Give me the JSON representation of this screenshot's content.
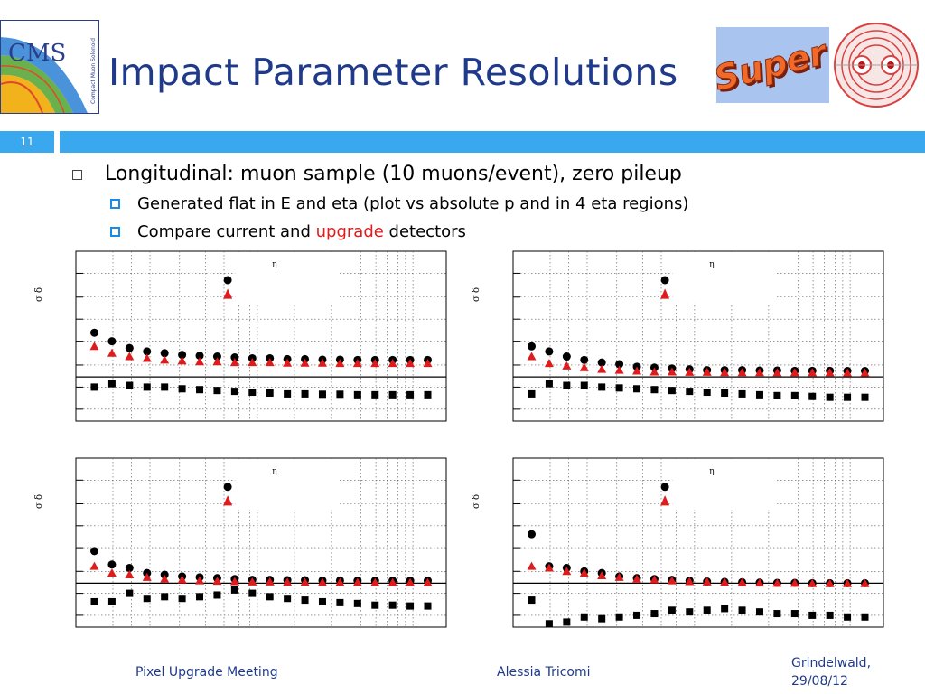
{
  "slide": {
    "number": "11",
    "title": "Impact Parameter Resolutions",
    "logos": {
      "cms_label": "CMS",
      "cms_subtitle": "Compact Muon Solenoid",
      "super_label": "Super"
    },
    "bullets": [
      {
        "level": 1,
        "text": "Longitudinal: muon sample (10 muons/event), zero pileup",
        "children": [
          {
            "level": 2,
            "text": "Generated flat in E and eta (plot vs absolute p and in 4 eta regions)"
          },
          {
            "level": 2,
            "text_before": "Compare current and ",
            "text_highlight": "upgrade",
            "text_after": " detectors"
          }
        ]
      }
    ],
    "footer": {
      "left": "Pixel Upgrade Meeting",
      "center": "Alessia Tricomi",
      "right_line1": "Grindelwald,",
      "right_line2": "29/08/12"
    },
    "colors": {
      "title": "#1f3a8a",
      "bar": "#3aa8ee",
      "current": "#000000",
      "upgrade": "#e01b1b"
    }
  },
  "chart_data": [
    {
      "type": "scatter",
      "panel": "top-left",
      "ylabel": "σ δ",
      "legend_label": "η",
      "legend_position": "top-center",
      "grid": true,
      "ylim": [
        0,
        1
      ],
      "x": [
        1,
        2,
        3,
        4,
        5,
        6,
        7,
        8,
        9,
        10,
        11,
        12,
        13,
        14,
        15,
        16,
        17,
        18,
        19,
        20
      ],
      "series": [
        {
          "marker": "circle",
          "color": "#000000",
          "values": [
            0.52,
            0.47,
            0.43,
            0.41,
            0.4,
            0.39,
            0.385,
            0.38,
            0.375,
            0.37,
            0.37,
            0.365,
            0.365,
            0.362,
            0.362,
            0.36,
            0.36,
            0.36,
            0.36,
            0.36
          ]
        },
        {
          "marker": "triangle",
          "color": "#e01b1b",
          "values": [
            0.44,
            0.4,
            0.38,
            0.37,
            0.36,
            0.355,
            0.35,
            0.35,
            0.345,
            0.345,
            0.345,
            0.342,
            0.342,
            0.342,
            0.34,
            0.34,
            0.34,
            0.34,
            0.34,
            0.34
          ]
        },
        {
          "marker": "square",
          "color": "#000000",
          "values": [
            0.2,
            0.22,
            0.21,
            0.2,
            0.2,
            0.19,
            0.185,
            0.18,
            0.175,
            0.17,
            0.165,
            0.16,
            0.16,
            0.158,
            0.158,
            0.155,
            0.155,
            0.155,
            0.155,
            0.155
          ]
        }
      ]
    },
    {
      "type": "scatter",
      "panel": "top-right",
      "ylabel": "σ δ",
      "legend_label": "η",
      "legend_position": "top-center",
      "grid": true,
      "ylim": [
        0,
        1
      ],
      "x": [
        1,
        2,
        3,
        4,
        5,
        6,
        7,
        8,
        9,
        10,
        11,
        12,
        13,
        14,
        15,
        16,
        17,
        18,
        19,
        20
      ],
      "series": [
        {
          "marker": "circle",
          "color": "#000000",
          "values": [
            0.44,
            0.41,
            0.38,
            0.36,
            0.345,
            0.335,
            0.32,
            0.315,
            0.31,
            0.305,
            0.3,
            0.3,
            0.3,
            0.298,
            0.298,
            0.296,
            0.296,
            0.296,
            0.295,
            0.295
          ]
        },
        {
          "marker": "triangle",
          "color": "#e01b1b",
          "values": [
            0.38,
            0.34,
            0.325,
            0.315,
            0.305,
            0.3,
            0.295,
            0.29,
            0.29,
            0.288,
            0.288,
            0.286,
            0.286,
            0.286,
            0.285,
            0.285,
            0.285,
            0.285,
            0.284,
            0.284
          ]
        },
        {
          "marker": "square",
          "color": "#000000",
          "values": [
            0.16,
            0.22,
            0.21,
            0.21,
            0.2,
            0.195,
            0.19,
            0.185,
            0.18,
            0.175,
            0.17,
            0.165,
            0.16,
            0.155,
            0.15,
            0.15,
            0.145,
            0.14,
            0.14,
            0.14
          ]
        }
      ]
    },
    {
      "type": "scatter",
      "panel": "bottom-left",
      "ylabel": "σ δ",
      "legend_label": "η",
      "legend_position": "top-center",
      "grid": true,
      "ylim": [
        0,
        1
      ],
      "x": [
        1,
        2,
        3,
        4,
        5,
        6,
        7,
        8,
        9,
        10,
        11,
        12,
        13,
        14,
        15,
        16,
        17,
        18,
        19,
        20
      ],
      "series": [
        {
          "marker": "circle",
          "color": "#000000",
          "values": [
            0.45,
            0.37,
            0.35,
            0.32,
            0.31,
            0.3,
            0.295,
            0.29,
            0.285,
            0.28,
            0.28,
            0.278,
            0.278,
            0.276,
            0.276,
            0.275,
            0.275,
            0.275,
            0.275,
            0.275
          ]
        },
        {
          "marker": "triangle",
          "color": "#e01b1b",
          "values": [
            0.36,
            0.32,
            0.31,
            0.295,
            0.285,
            0.28,
            0.275,
            0.272,
            0.27,
            0.268,
            0.268,
            0.266,
            0.266,
            0.265,
            0.265,
            0.265,
            0.264,
            0.264,
            0.264,
            0.264
          ]
        },
        {
          "marker": "square",
          "color": "#000000",
          "values": [
            0.15,
            0.15,
            0.2,
            0.17,
            0.18,
            0.17,
            0.18,
            0.19,
            0.22,
            0.2,
            0.18,
            0.17,
            0.16,
            0.15,
            0.145,
            0.14,
            0.13,
            0.13,
            0.125,
            0.125
          ]
        }
      ]
    },
    {
      "type": "scatter",
      "panel": "bottom-right",
      "ylabel": "σ δ",
      "legend_label": "η",
      "legend_position": "top-center",
      "grid": true,
      "ylim": [
        0,
        1
      ],
      "x": [
        1,
        2,
        3,
        4,
        5,
        6,
        7,
        8,
        9,
        10,
        11,
        12,
        13,
        14,
        15,
        16,
        17,
        18,
        19,
        20
      ],
      "series": [
        {
          "marker": "circle",
          "color": "#000000",
          "values": [
            0.55,
            0.36,
            0.35,
            0.33,
            0.32,
            0.3,
            0.29,
            0.285,
            0.28,
            0.275,
            0.27,
            0.268,
            0.266,
            0.264,
            0.262,
            0.262,
            0.26,
            0.26,
            0.26,
            0.26
          ]
        },
        {
          "marker": "triangle",
          "color": "#e01b1b",
          "values": [
            0.36,
            0.35,
            0.33,
            0.32,
            0.305,
            0.295,
            0.285,
            0.28,
            0.275,
            0.27,
            0.268,
            0.266,
            0.264,
            0.262,
            0.26,
            0.26,
            0.258,
            0.258,
            0.258,
            0.258
          ]
        },
        {
          "marker": "square",
          "color": "#000000",
          "values": [
            0.16,
            0.02,
            0.03,
            0.06,
            0.05,
            0.06,
            0.07,
            0.08,
            0.1,
            0.09,
            0.1,
            0.11,
            0.1,
            0.09,
            0.08,
            0.08,
            0.07,
            0.07,
            0.06,
            0.06
          ]
        }
      ]
    }
  ]
}
